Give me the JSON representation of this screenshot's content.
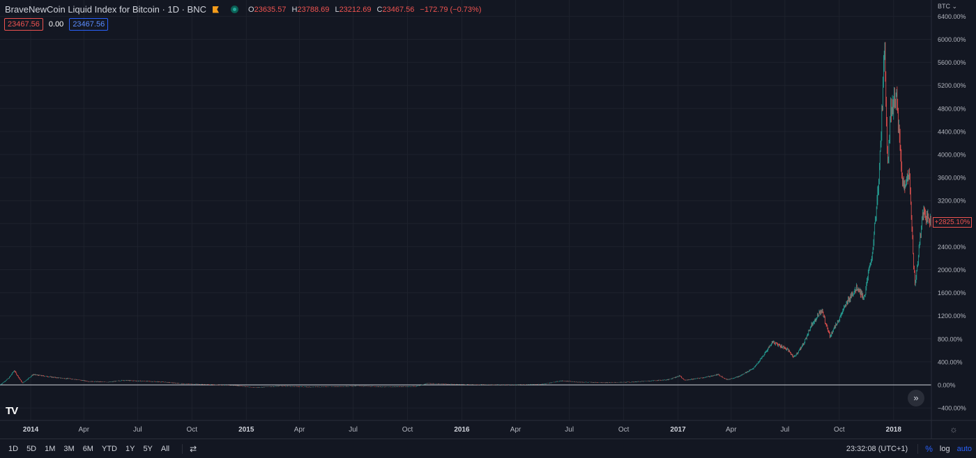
{
  "header": {
    "title": "BraveNewCoin Liquid Index for Bitcoin · 1D · BNC",
    "o_label": "O",
    "o_val": "23635.57",
    "h_label": "H",
    "h_val": "23788.69",
    "l_label": "L",
    "l_val": "23212.69",
    "c_label": "C",
    "c_val": "23467.56",
    "change": "−172.79 (−0.73%)",
    "box_sell": "23467.56",
    "box_spread": "0.00",
    "box_buy": "23467.56"
  },
  "currency_label": "BTC ⌄",
  "current_label": "+2825.10%",
  "nav_glyph": "»",
  "logo_text": "TV",
  "settings_icon_glyph": "☼",
  "bottom": {
    "ranges": [
      "1D",
      "5D",
      "1M",
      "3M",
      "6M",
      "YTD",
      "1Y",
      "5Y",
      "All"
    ],
    "calendar_glyph": "⇄",
    "time": "23:32:08 (UTC+1)",
    "percent": "%",
    "log": "log",
    "auto": "auto"
  },
  "colors": {
    "up": "#26a69a",
    "down": "#ef5350",
    "accent": "#2962ff",
    "background": "#131722"
  },
  "chart_data": {
    "type": "line",
    "title": "",
    "xlabel": "",
    "ylabel": "",
    "y_unit": "%",
    "ylim": [
      -500,
      6500
    ],
    "y_ticks": [
      -400,
      0,
      400,
      800,
      1200,
      1600,
      2000,
      2400,
      2800,
      3200,
      3600,
      4000,
      4400,
      4800,
      5200,
      5600,
      6000,
      6400
    ],
    "y_tick_labels": [
      "−400.00%",
      "0.00%",
      "400.00%",
      "800.00%",
      "1200.00%",
      "1600.00%",
      "2000.00%",
      "2400.00%",
      "2800.00%",
      "3200.00%",
      "3600.00%",
      "4000.00%",
      "4400.00%",
      "4800.00%",
      "5200.00%",
      "5600.00%",
      "6000.00%",
      "6400.00%"
    ],
    "x_range": [
      "2013-11-10",
      "2018-03-06"
    ],
    "x_ticks": [
      {
        "date": "2014-01-01",
        "label": "2014",
        "bold": true
      },
      {
        "date": "2014-04-01",
        "label": "Apr"
      },
      {
        "date": "2014-07-01",
        "label": "Jul"
      },
      {
        "date": "2014-10-01",
        "label": "Oct"
      },
      {
        "date": "2015-01-01",
        "label": "2015",
        "bold": true
      },
      {
        "date": "2015-04-01",
        "label": "Apr"
      },
      {
        "date": "2015-07-01",
        "label": "Jul"
      },
      {
        "date": "2015-10-01",
        "label": "Oct"
      },
      {
        "date": "2016-01-01",
        "label": "2016",
        "bold": true
      },
      {
        "date": "2016-04-01",
        "label": "Apr"
      },
      {
        "date": "2016-07-01",
        "label": "Jul"
      },
      {
        "date": "2016-10-01",
        "label": "Oct"
      },
      {
        "date": "2017-01-01",
        "label": "2017",
        "bold": true
      },
      {
        "date": "2017-04-01",
        "label": "Apr"
      },
      {
        "date": "2017-07-01",
        "label": "Jul"
      },
      {
        "date": "2017-10-01",
        "label": "Oct"
      },
      {
        "date": "2018-01-01",
        "label": "2018",
        "bold": true
      }
    ],
    "grid": true,
    "series": [
      {
        "values": [
          [
            "2013-11-10",
            0
          ],
          [
            "2013-11-25",
            120
          ],
          [
            "2013-12-04",
            250
          ],
          [
            "2013-12-18",
            30
          ],
          [
            "2014-01-05",
            180
          ],
          [
            "2014-02-10",
            130
          ],
          [
            "2014-03-15",
            100
          ],
          [
            "2014-04-10",
            60
          ],
          [
            "2014-05-15",
            50
          ],
          [
            "2014-06-05",
            80
          ],
          [
            "2014-07-01",
            70
          ],
          [
            "2014-08-15",
            50
          ],
          [
            "2014-09-15",
            20
          ],
          [
            "2014-10-15",
            10
          ],
          [
            "2014-12-15",
            -10
          ],
          [
            "2015-01-14",
            -45
          ],
          [
            "2015-03-01",
            -20
          ],
          [
            "2015-04-15",
            -35
          ],
          [
            "2015-06-01",
            -30
          ],
          [
            "2015-07-10",
            -20
          ],
          [
            "2015-08-25",
            -35
          ],
          [
            "2015-10-15",
            -25
          ],
          [
            "2015-11-04",
            25
          ],
          [
            "2015-12-15",
            10
          ],
          [
            "2016-01-20",
            5
          ],
          [
            "2016-03-15",
            0
          ],
          [
            "2016-05-15",
            10
          ],
          [
            "2016-06-17",
            70
          ],
          [
            "2016-07-15",
            50
          ],
          [
            "2016-09-01",
            40
          ],
          [
            "2016-10-15",
            50
          ],
          [
            "2016-12-15",
            90
          ],
          [
            "2017-01-04",
            160
          ],
          [
            "2017-01-12",
            80
          ],
          [
            "2017-02-15",
            130
          ],
          [
            "2017-03-10",
            180
          ],
          [
            "2017-03-25",
            90
          ],
          [
            "2017-04-15",
            150
          ],
          [
            "2017-05-10",
            300
          ],
          [
            "2017-05-25",
            500
          ],
          [
            "2017-06-10",
            750
          ],
          [
            "2017-07-05",
            620
          ],
          [
            "2017-07-16",
            480
          ],
          [
            "2017-08-01",
            700
          ],
          [
            "2017-08-15",
            1050
          ],
          [
            "2017-09-01",
            1300
          ],
          [
            "2017-09-15",
            850
          ],
          [
            "2017-10-01",
            1150
          ],
          [
            "2017-10-20",
            1550
          ],
          [
            "2017-11-01",
            1700
          ],
          [
            "2017-11-12",
            1500
          ],
          [
            "2017-11-26",
            2300
          ],
          [
            "2017-12-07",
            3500
          ],
          [
            "2017-12-17",
            5900
          ],
          [
            "2017-12-22",
            3800
          ],
          [
            "2017-12-27",
            4800
          ],
          [
            "2018-01-06",
            5000
          ],
          [
            "2018-01-16",
            3500
          ],
          [
            "2018-01-28",
            3600
          ],
          [
            "2018-02-06",
            1700
          ],
          [
            "2018-02-20",
            3000
          ],
          [
            "2018-03-05",
            2825
          ]
        ]
      }
    ],
    "current_value": 2825.1
  }
}
